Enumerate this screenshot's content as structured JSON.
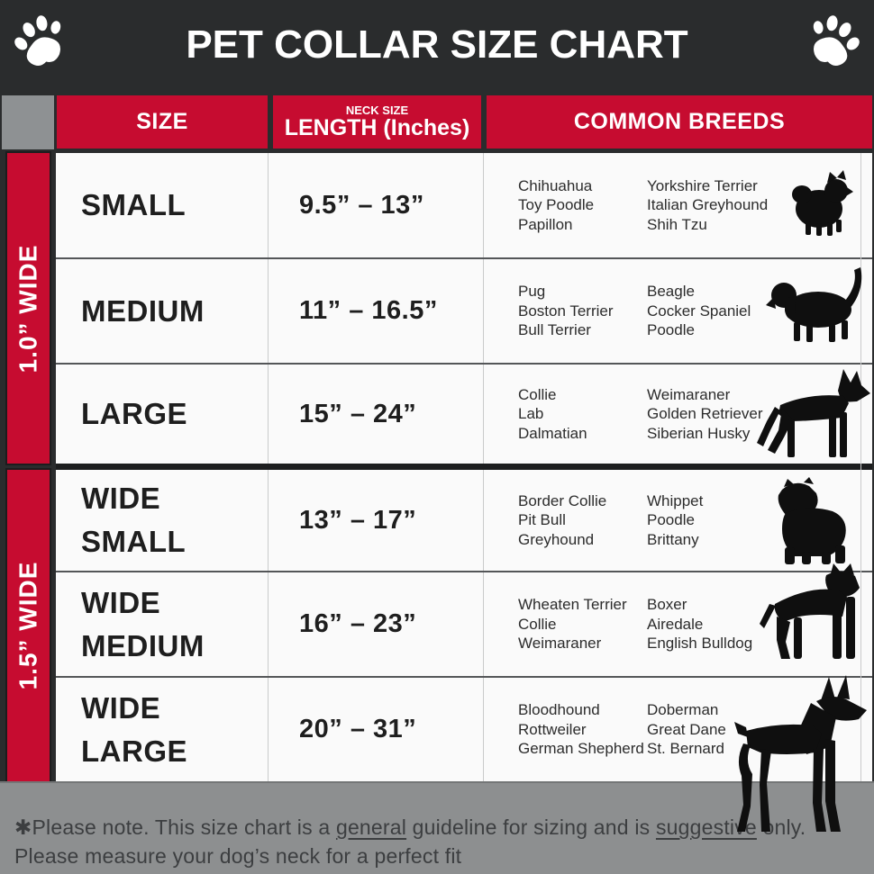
{
  "header": {
    "title": "PET COLLAR SIZE CHART"
  },
  "colors": {
    "background_dark": "#2a2c2d",
    "accent_red": "#c60c30",
    "corner_gray": "#8e9193",
    "footer_gray": "#8d8f90",
    "cell_white": "#fafafa"
  },
  "icons": {
    "left": "paw-icon",
    "right": "paw-icon"
  },
  "table": {
    "column_headers": {
      "size": "SIZE",
      "neck_size_label": "NECK SIZE",
      "length_label": "LENGTH (Inches)",
      "breeds": "COMMON BREEDS"
    },
    "side_labels": [
      {
        "label": "1.0” WIDE"
      },
      {
        "label": "1.5” WIDE"
      }
    ],
    "rows": [
      {
        "size": "SMALL",
        "length": "9.5” – 13”",
        "breeds_col1": "Chihuahua\nToy Poodle\nPapillon",
        "breeds_col2": "Yorkshire Terrier\nItalian Greyhound\nShih Tzu",
        "dog_icon": "pomeranian-silhouette"
      },
      {
        "size": "MEDIUM",
        "length": "11” – 16.5”",
        "breeds_col1": "Pug\nBoston Terrier\nBull Terrier",
        "breeds_col2": "Beagle\nCocker Spaniel\nPoodle",
        "dog_icon": "beagle-silhouette"
      },
      {
        "size": "LARGE",
        "length": "15” – 24”",
        "breeds_col1": "Collie\nLab\nDalmatian",
        "breeds_col2": "Weimaraner\nGolden Retriever\nSiberian Husky",
        "dog_icon": "german-shepherd-silhouette"
      },
      {
        "size": "WIDE\nSMALL",
        "length": "13” – 17”",
        "breeds_col1": "Border Collie\nPit Bull\nGreyhound",
        "breeds_col2": "Whippet\nPoodle\nBrittany",
        "dog_icon": "bulldog-silhouette"
      },
      {
        "size": "WIDE\nMEDIUM",
        "length": "16” – 23”",
        "breeds_col1": "Wheaten Terrier\nCollie\nWeimaraner",
        "breeds_col2": "Boxer\nAiredale\nEnglish Bulldog",
        "dog_icon": "pitbull-silhouette"
      },
      {
        "size": "WIDE\nLARGE",
        "length": "20” – 31”",
        "breeds_col1": "Bloodhound\nRottweiler\nGerman Shepherd",
        "breeds_col2": "Doberman\nGreat Dane\nSt. Bernard",
        "dog_icon": "doberman-silhouette"
      }
    ]
  },
  "footer": {
    "line1_segments": [
      {
        "text": "✱Please note. This size chart is a "
      },
      {
        "text": "general",
        "underline": true
      },
      {
        "text": " guideline for sizing and is "
      },
      {
        "text": "suggestive",
        "underline": true
      },
      {
        "text": " only."
      }
    ],
    "line2": "Please measure your dog’s neck for a perfect fit"
  }
}
